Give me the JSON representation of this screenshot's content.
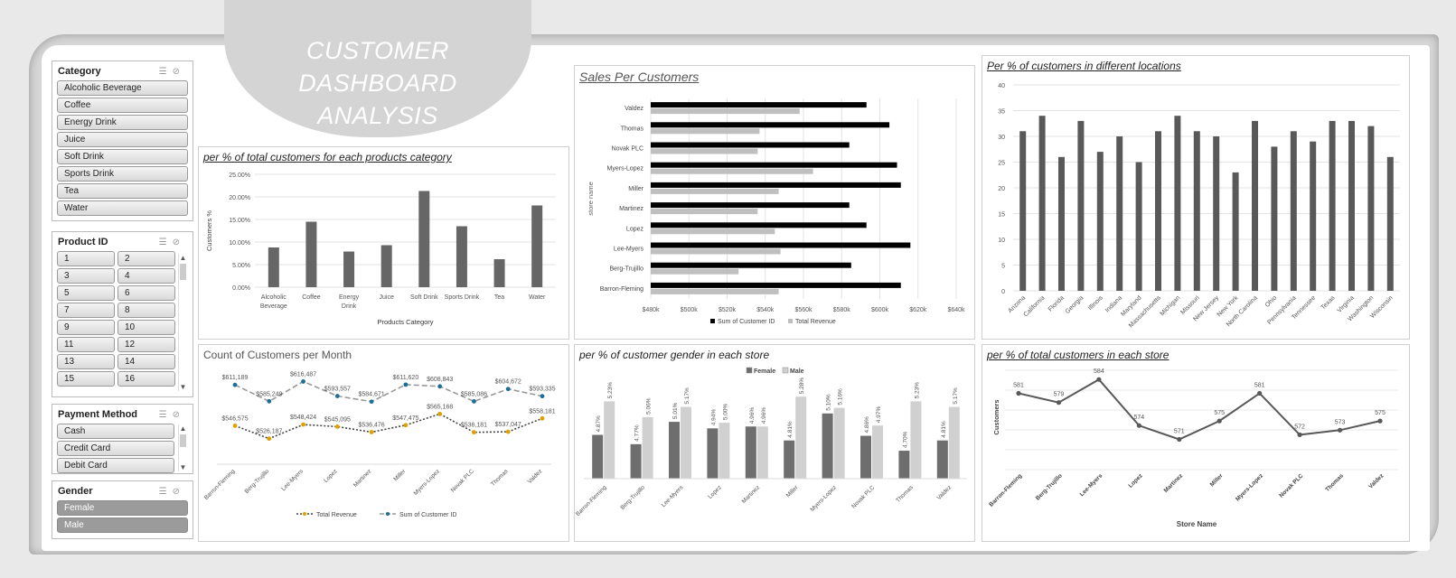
{
  "title": {
    "line1": "CUSTOMER DASHBOARD",
    "line2": "ANALYSIS"
  },
  "slicers": {
    "category": {
      "title": "Category",
      "items": [
        "Alcoholic Beverage",
        "Coffee",
        "Energy Drink",
        "Juice",
        "Soft Drink",
        "Sports Drink",
        "Tea",
        "Water"
      ]
    },
    "product": {
      "title": "Product ID",
      "items": [
        "1",
        "2",
        "3",
        "4",
        "5",
        "6",
        "7",
        "8",
        "9",
        "10",
        "11",
        "12",
        "13",
        "14",
        "15",
        "16"
      ]
    },
    "payment": {
      "title": "Payment Method",
      "items": [
        "Cash",
        "Credit Card",
        "Debit Card"
      ]
    },
    "gender": {
      "title": "Gender",
      "items": [
        "Female",
        "Male"
      ]
    }
  },
  "panels": {
    "category": "per % of total customers for each products category",
    "sales": "Sales Per Customers",
    "locations": "Per % of customers in different locations",
    "month": "Count of Customers per Month",
    "gender": "per % of customer gender in each store",
    "store": "per % of total customers in each store"
  },
  "chart_data": [
    {
      "id": "category",
      "type": "bar",
      "categories": [
        "Alcoholic Beverage",
        "Coffee",
        "Energy Drink",
        "Juice",
        "Soft Drink",
        "Sports Drink",
        "Tea",
        "Water"
      ],
      "values": [
        8.8,
        14.5,
        7.9,
        9.3,
        21.3,
        13.5,
        6.2,
        18.1
      ],
      "ylabel": "Customers %",
      "xlabel": "Products Category",
      "ylim": [
        0,
        25
      ],
      "yticks": [
        "0.00%",
        "5.00%",
        "10.00%",
        "15.00%",
        "20.00%",
        "25.00%"
      ],
      "color": "#666666"
    },
    {
      "id": "sales",
      "type": "bar",
      "orientation": "horizontal",
      "categories": [
        "Valdez",
        "Thomas",
        "Novak PLC",
        "Myers-Lopez",
        "Miller",
        "Martinez",
        "Lopez",
        "Lee-Myers",
        "Berg-Trujillo",
        "Barron-Fleming"
      ],
      "series": [
        {
          "name": "Sum of Customer ID",
          "values": [
            593,
            605,
            584,
            609,
            611,
            584,
            593,
            616,
            585,
            611
          ],
          "color": "#000000"
        },
        {
          "name": "Total Revenue",
          "values": [
            558,
            537,
            536,
            565,
            547,
            536,
            545,
            548,
            526,
            547
          ],
          "color": "#bfbfbf"
        }
      ],
      "ylabel": "store name",
      "xlim": [
        480,
        640
      ],
      "xticks": [
        "$480k",
        "$500k",
        "$520k",
        "$540k",
        "$560k",
        "$580k",
        "$600k",
        "$620k",
        "$640k"
      ]
    },
    {
      "id": "locations",
      "type": "bar",
      "categories": [
        "Arizona",
        "California",
        "Florida",
        "Georgia",
        "Illinois",
        "Indiana",
        "Maryland",
        "Massachusetts",
        "Michigan",
        "Missouri",
        "New Jersey",
        "New York",
        "North Carolina",
        "Ohio",
        "Pennsylvania",
        "Tennessee",
        "Texas",
        "Virginia",
        "Washington",
        "Wisconsin"
      ],
      "values": [
        31,
        34,
        26,
        33,
        27,
        30,
        25,
        31,
        34,
        31,
        30,
        23,
        33,
        28,
        31,
        29,
        33,
        33,
        32,
        26
      ],
      "ylim": [
        0,
        40
      ],
      "yticks": [
        "0",
        "5",
        "10",
        "15",
        "20",
        "25",
        "30",
        "35",
        "40"
      ],
      "color": "#595959"
    },
    {
      "id": "month",
      "type": "line",
      "categories": [
        "Barron-Fleming",
        "Berg-Trujillo",
        "Lee-Myers",
        "Lopez",
        "Martinez",
        "Miller",
        "Myers-Lopez",
        "Novak PLC",
        "Thomas",
        "Valdez"
      ],
      "series": [
        {
          "name": "Total Revenue",
          "values": [
            546575,
            526187,
            548424,
            545095,
            536476,
            547475,
            565168,
            536181,
            537047,
            558181
          ],
          "labels": [
            "$546,575",
            "$526,187",
            "$548,424",
            "$545,095",
            "$536,476",
            "$547,475",
            "$565,168",
            "$536,181",
            "$537,047",
            "$558,181"
          ],
          "color": "#444444",
          "marker": "#e0a000"
        },
        {
          "name": "Sum of Customer ID",
          "values": [
            611189,
            585249,
            616487,
            593557,
            584671,
            611620,
            608843,
            585086,
            604672,
            593335
          ],
          "labels": [
            "$611,189",
            "$585,249",
            "$616,487",
            "$593,557",
            "$584,671",
            "$611,620",
            "$608,843",
            "$585,086",
            "$604,672",
            "$593,335"
          ],
          "color": "#999999",
          "marker": "#1b6f99"
        }
      ]
    },
    {
      "id": "gender",
      "type": "bar",
      "categories": [
        "Barron-Fleming",
        "Berg-Trujillo",
        "Lee-Myers",
        "Lopez",
        "Martinez",
        "Miller",
        "Myers-Lopez",
        "Novak PLC",
        "Thomas",
        "Valdez"
      ],
      "series": [
        {
          "name": "Female",
          "values": [
            4.87,
            4.77,
            5.01,
            4.94,
            4.96,
            4.81,
            5.1,
            4.86,
            4.7,
            4.81
          ],
          "labels": [
            "4.87%",
            "4.77%",
            "5.01%",
            "4.94%",
            "4.96%",
            "4.81%",
            "5.10%",
            "4.86%",
            "4.70%",
            "4.81%"
          ],
          "color": "#6e6e6e"
        },
        {
          "name": "Male",
          "values": [
            5.23,
            5.06,
            5.17,
            5.0,
            4.96,
            5.28,
            5.16,
            4.97,
            5.23,
            5.17
          ],
          "labels": [
            "5.23%",
            "5.06%",
            "5.17%",
            "5.00%",
            "4.96%",
            "5.28%",
            "5.16%",
            "4.97%",
            "5.23%",
            "5.17%"
          ],
          "color": "#d0d0d0"
        }
      ]
    },
    {
      "id": "store",
      "type": "line",
      "categories": [
        "Barron-Fleming",
        "Berg-Trujillo",
        "Lee-Myers",
        "Lopez",
        "Martinez",
        "Miller",
        "Myers-Lopez",
        "Novak PLC",
        "Thomas",
        "Valdez"
      ],
      "values": [
        581,
        579,
        584,
        574,
        571,
        575,
        581,
        572,
        573,
        575
      ],
      "labels": [
        "581",
        "579",
        "584",
        "574",
        "571",
        "575",
        "581",
        "572",
        "573",
        "575"
      ],
      "ylabel": "Customers",
      "xlabel": "Store Name",
      "color": "#595959"
    }
  ]
}
